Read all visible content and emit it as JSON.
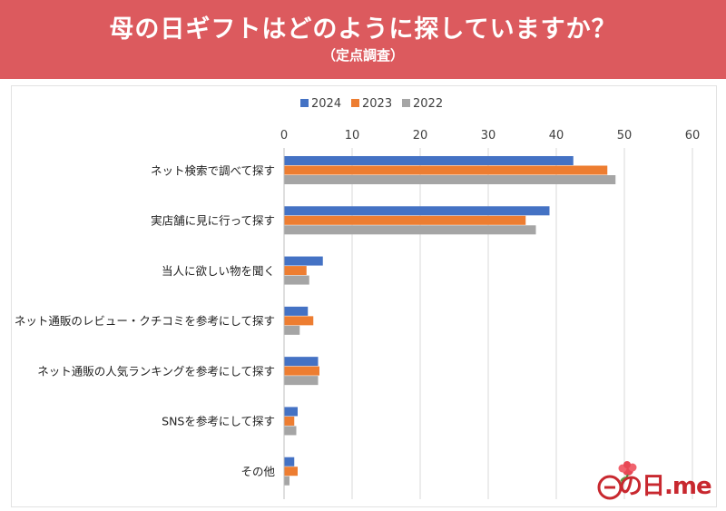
{
  "header": {
    "title": "母の日ギフトはどのように探していますか？",
    "subtitle": "（定点調査）"
  },
  "logo": {
    "text": "の日.me"
  },
  "colors": {
    "header_bg": "#dc5a5e",
    "s2024": "#4472c4",
    "s2023": "#ed7d31",
    "s2022": "#a5a5a5",
    "grid": "#d9d9d9"
  },
  "chart_data": {
    "type": "bar",
    "orientation": "horizontal",
    "categories": [
      "ネット検索で調べて探す",
      "実店舗に見に行って探す",
      "当人に欲しい物を聞く",
      "ネット通販のレビュー・クチコミを参考にして探す",
      "ネット通販の人気ランキングを参考にして探す",
      "SNSを参考にして探す",
      "その他"
    ],
    "series": [
      {
        "name": "2024",
        "values": [
          42.5,
          39.0,
          5.7,
          3.5,
          5.0,
          2.0,
          1.5
        ]
      },
      {
        "name": "2023",
        "values": [
          47.5,
          35.5,
          3.3,
          4.3,
          5.2,
          1.5,
          2.0
        ]
      },
      {
        "name": "2022",
        "values": [
          48.7,
          37.0,
          3.7,
          2.3,
          5.0,
          1.8,
          0.8
        ]
      }
    ],
    "xlim": [
      0,
      60
    ],
    "xticks": [
      0,
      10,
      20,
      30,
      40,
      50,
      60
    ],
    "grid": true,
    "legend": "top-center",
    "xlabel": "",
    "ylabel": ""
  }
}
